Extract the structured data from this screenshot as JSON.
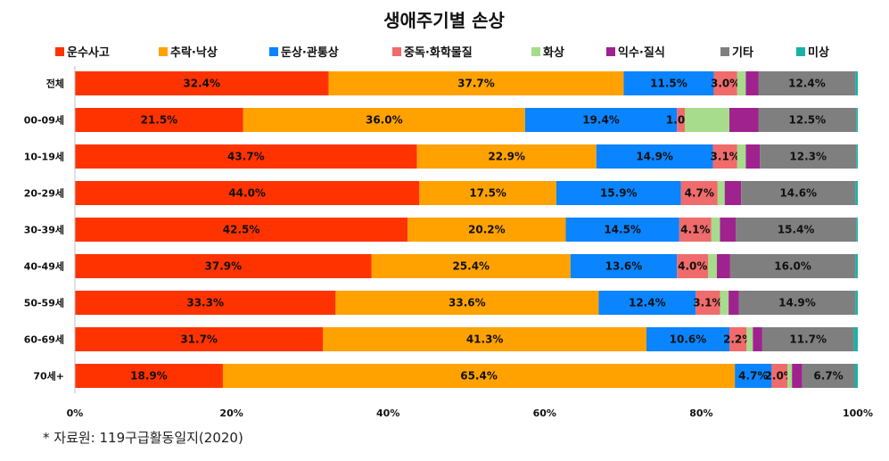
{
  "chart_data": {
    "type": "bar",
    "orientation": "horizontal",
    "stacked": true,
    "percent_stacked": true,
    "title": "생애주기별 손상",
    "categories": [
      "전체",
      "00-09세",
      "10-19세",
      "20-29세",
      "30-39세",
      "40-49세",
      "50-59세",
      "60-69세",
      "70세+"
    ],
    "series": [
      {
        "name": "운수사고",
        "color": "#ff3300",
        "values": [
          32.4,
          21.5,
          43.7,
          44.0,
          42.5,
          37.9,
          33.3,
          31.7,
          18.9
        ]
      },
      {
        "name": "추락·낙상",
        "color": "#ffa200",
        "values": [
          37.7,
          36.0,
          22.9,
          17.5,
          20.2,
          25.4,
          33.6,
          41.3,
          65.4
        ]
      },
      {
        "name": "둔상·관통상",
        "color": "#0a84ff",
        "values": [
          11.5,
          19.4,
          14.9,
          15.9,
          14.5,
          13.6,
          12.4,
          10.6,
          4.7
        ]
      },
      {
        "name": "중독·화학물질",
        "color": "#f06b6b",
        "values": [
          3.0,
          1.0,
          3.1,
          4.7,
          4.1,
          4.0,
          3.1,
          2.2,
          2.0
        ]
      },
      {
        "name": "화상",
        "color": "#a6dc8c",
        "values": [
          1.1,
          5.7,
          1.1,
          0.9,
          1.1,
          1.1,
          1.1,
          0.8,
          0.6
        ]
      },
      {
        "name": "익수·질식",
        "color": "#a0228e",
        "values": [
          1.6,
          3.7,
          1.8,
          2.1,
          2.0,
          1.7,
          1.3,
          1.2,
          1.3
        ]
      },
      {
        "name": "기타",
        "color": "#7f7f7f",
        "values": [
          12.4,
          12.5,
          12.3,
          14.6,
          15.4,
          16.0,
          14.9,
          11.7,
          6.7
        ]
      },
      {
        "name": "미상",
        "color": "#18b2a8",
        "values": [
          0.3,
          0.2,
          0.2,
          0.3,
          0.2,
          0.3,
          0.3,
          0.5,
          0.4
        ]
      }
    ],
    "data_labels": [
      [
        "32.4%",
        "37.7%",
        "11.5%",
        "3.0%",
        "",
        "",
        "12.4%",
        ""
      ],
      [
        "21.5%",
        "36.0%",
        "19.4%",
        "1.0%",
        "",
        "",
        "12.5%",
        ""
      ],
      [
        "43.7%",
        "22.9%",
        "14.9%",
        "3.1%",
        "",
        "",
        "12.3%",
        ""
      ],
      [
        "44.0%",
        "17.5%",
        "15.9%",
        "4.7%",
        "",
        "",
        "14.6%",
        ""
      ],
      [
        "42.5%",
        "20.2%",
        "14.5%",
        "4.1%",
        "",
        "",
        "15.4%",
        ""
      ],
      [
        "37.9%",
        "25.4%",
        "13.6%",
        "4.0%",
        "",
        "",
        "16.0%",
        ""
      ],
      [
        "33.3%",
        "33.6%",
        "12.4%",
        "3.1%",
        "",
        "",
        "14.9%",
        ""
      ],
      [
        "31.7%",
        "41.3%",
        "10.6%",
        "2.2%",
        "",
        "",
        "11.7%",
        ""
      ],
      [
        "18.9%",
        "65.4%",
        "4.7%",
        "2.0%",
        "",
        "",
        "6.7%",
        ""
      ]
    ],
    "x_ticks": [
      "0%",
      "20%",
      "40%",
      "60%",
      "80%",
      "100%"
    ],
    "xlim": [
      0,
      100
    ],
    "legend_position": "top",
    "grid": false
  },
  "source_note": "* 자료원: 119구급활동일지(2020)"
}
